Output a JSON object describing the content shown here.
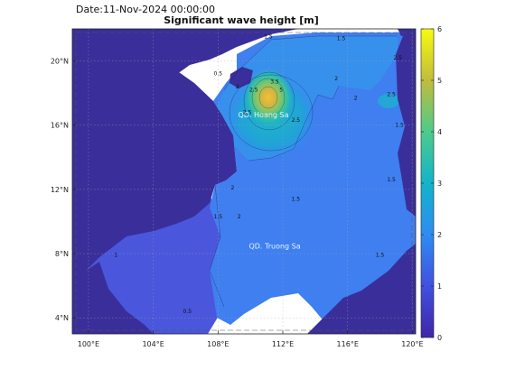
{
  "header": {
    "date": "Date:11-Nov-2024 00:00:00",
    "title": "Significant wave height [m]"
  },
  "map": {
    "lon_range": [
      99.0,
      120.2
    ],
    "lat_range": [
      3.0,
      22.0
    ],
    "lon_ticks": [
      {
        "value": 100,
        "label": "100°E"
      },
      {
        "value": 104,
        "label": "104°E"
      },
      {
        "value": 108,
        "label": "108°E"
      },
      {
        "value": 112,
        "label": "112°E"
      },
      {
        "value": 116,
        "label": "116°E"
      },
      {
        "value": 120,
        "label": "120°E"
      }
    ],
    "lat_ticks": [
      {
        "value": 20,
        "label": "20°N"
      },
      {
        "value": 16,
        "label": "16°N"
      },
      {
        "value": 12,
        "label": "12°N"
      },
      {
        "value": 8,
        "label": "8°N"
      },
      {
        "value": 4,
        "label": "4°N"
      }
    ],
    "grid": true,
    "place_labels": [
      {
        "text": "QD. Hoang Sa",
        "lon": 110.8,
        "lat": 16.5
      },
      {
        "text": "QD. Truong Sa",
        "lon": 111.5,
        "lat": 8.3
      }
    ],
    "contour_labels": [
      {
        "text": "1.5",
        "lon": 111.1,
        "lat": 21.4
      },
      {
        "text": "1.5",
        "lon": 115.6,
        "lat": 21.3
      },
      {
        "text": "2.5",
        "lon": 119.1,
        "lat": 20.1
      },
      {
        "text": "0.5",
        "lon": 108.0,
        "lat": 19.1
      },
      {
        "text": "2",
        "lon": 109.2,
        "lat": 18.3
      },
      {
        "text": "2.5",
        "lon": 110.2,
        "lat": 18.1
      },
      {
        "text": "3.5",
        "lon": 111.5,
        "lat": 18.6
      },
      {
        "text": "5",
        "lon": 111.9,
        "lat": 18.1
      },
      {
        "text": "2",
        "lon": 115.3,
        "lat": 18.8
      },
      {
        "text": "2",
        "lon": 116.5,
        "lat": 17.6
      },
      {
        "text": "2.5",
        "lon": 118.7,
        "lat": 17.8
      },
      {
        "text": "2.5",
        "lon": 109.8,
        "lat": 16.7
      },
      {
        "text": "2.5",
        "lon": 112.8,
        "lat": 16.2
      },
      {
        "text": "1.5",
        "lon": 119.2,
        "lat": 15.9
      },
      {
        "text": "1.5",
        "lon": 118.7,
        "lat": 12.5
      },
      {
        "text": "2",
        "lon": 108.9,
        "lat": 12.0
      },
      {
        "text": "1.5",
        "lon": 108.0,
        "lat": 10.2
      },
      {
        "text": "2",
        "lon": 109.3,
        "lat": 10.2
      },
      {
        "text": "1.5",
        "lon": 112.8,
        "lat": 11.3
      },
      {
        "text": "1",
        "lon": 101.7,
        "lat": 7.8
      },
      {
        "text": "1.5",
        "lon": 118.0,
        "lat": 7.8
      },
      {
        "text": "0.5",
        "lon": 106.1,
        "lat": 4.3
      }
    ]
  },
  "colorbar": {
    "min": 0,
    "max": 6,
    "ticks": [
      {
        "value": 0,
        "label": "0"
      },
      {
        "value": 1,
        "label": "1"
      },
      {
        "value": 2,
        "label": "2"
      },
      {
        "value": 3,
        "label": "3"
      },
      {
        "value": 4,
        "label": "4"
      },
      {
        "value": 5,
        "label": "5"
      },
      {
        "value": 6,
        "label": "6"
      }
    ],
    "colors": [
      "#3e26a8",
      "#4150e0",
      "#2e8cf2",
      "#12b4ca",
      "#4dcb8b",
      "#c0bc3c",
      "#f9fb0e"
    ],
    "land_color": "#3a2e9b",
    "sea_low_color": "#4a56dc",
    "sea_mid_color": "#3f80f0"
  }
}
